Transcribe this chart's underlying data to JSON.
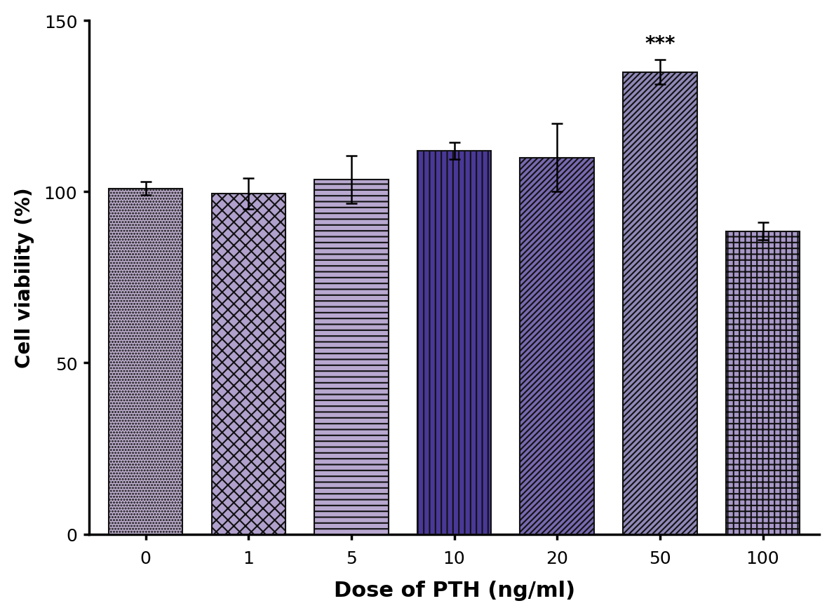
{
  "categories": [
    "0",
    "1",
    "5",
    "10",
    "20",
    "50",
    "100"
  ],
  "values": [
    101.0,
    99.5,
    103.5,
    112.0,
    110.0,
    135.0,
    88.5
  ],
  "errors": [
    2.0,
    4.5,
    7.0,
    2.5,
    10.0,
    3.5,
    2.5
  ],
  "face_colors": [
    "#c8bcd8",
    "#b8a8d0",
    "#b8a8d0",
    "#5040a0",
    "#8070b8",
    "#8878a8",
    "#a898c0"
  ],
  "hatch_patterns": [
    "....",
    "++",
    "--",
    "||",
    "////",
    "////",
    "++"
  ],
  "xlabel": "Dose of PTH (ng/ml)",
  "ylabel": "Cell viability (%)",
  "ylim": [
    0,
    150
  ],
  "yticks": [
    0,
    50,
    100,
    150
  ],
  "annotation_bar": 5,
  "annotation_text": "***",
  "bar_width": 0.72,
  "edgecolor": "#111111",
  "background_color": "#ffffff",
  "xlabel_fontsize": 22,
  "ylabel_fontsize": 20,
  "tick_fontsize": 18,
  "annotation_fontsize": 20
}
